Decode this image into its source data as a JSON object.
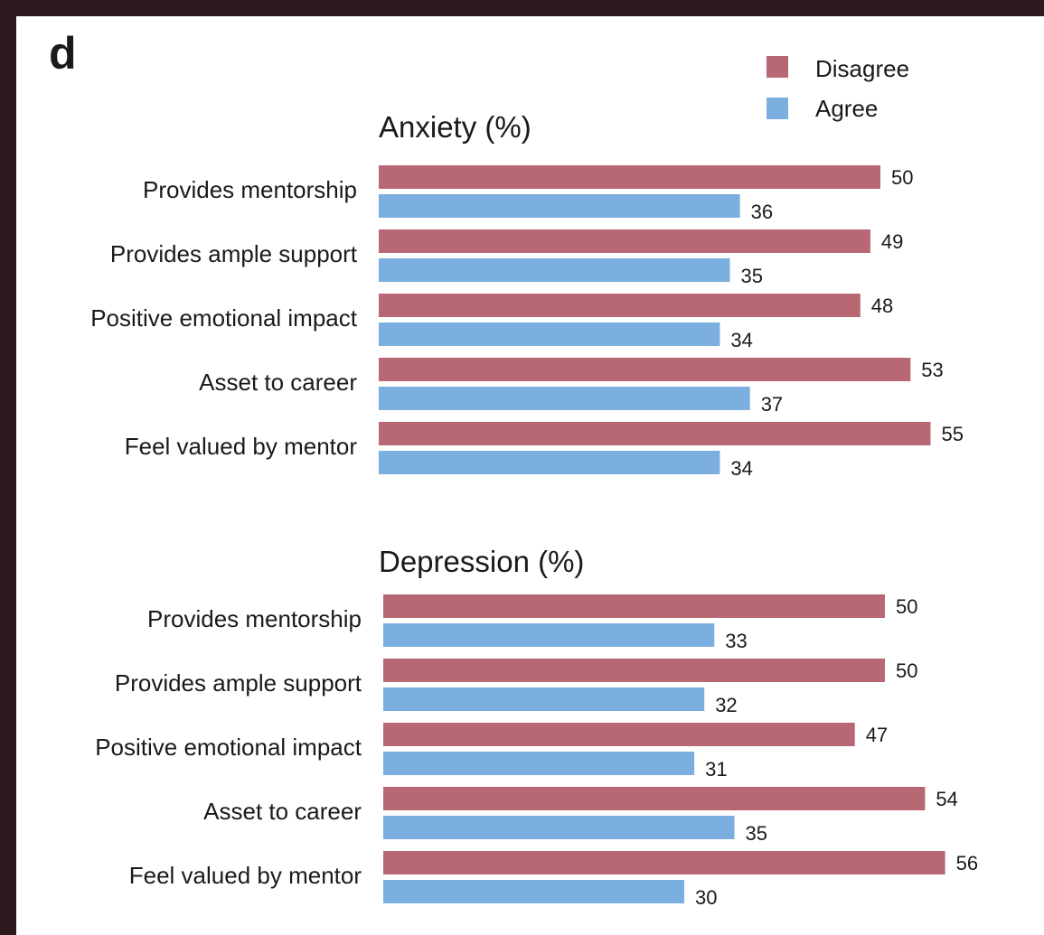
{
  "panel_letter": "d",
  "legend": [
    {
      "label": "Disagree",
      "color": "#b86873"
    },
    {
      "label": "Agree",
      "color": "#7aafdf"
    }
  ],
  "chart_data": [
    {
      "type": "bar",
      "orientation": "horizontal",
      "title": "Anxiety (%)",
      "categories": [
        "Provides mentorship",
        "Provides ample support",
        "Positive emotional impact",
        "Asset to career",
        "Feel valued by mentor"
      ],
      "series": [
        {
          "name": "Disagree",
          "values": [
            50,
            49,
            48,
            53,
            55
          ]
        },
        {
          "name": "Agree",
          "values": [
            36,
            35,
            34,
            37,
            34
          ]
        }
      ],
      "legend_position": "top-right",
      "grid": false
    },
    {
      "type": "bar",
      "orientation": "horizontal",
      "title": "Depression (%)",
      "categories": [
        "Provides mentorship",
        "Provides ample support",
        "Positive emotional impact",
        "Asset to career",
        "Feel valued by mentor"
      ],
      "series": [
        {
          "name": "Disagree",
          "values": [
            50,
            50,
            47,
            54,
            56
          ]
        },
        {
          "name": "Agree",
          "values": [
            33,
            32,
            31,
            35,
            30
          ]
        }
      ],
      "legend_position": "top-right",
      "grid": false
    }
  ]
}
